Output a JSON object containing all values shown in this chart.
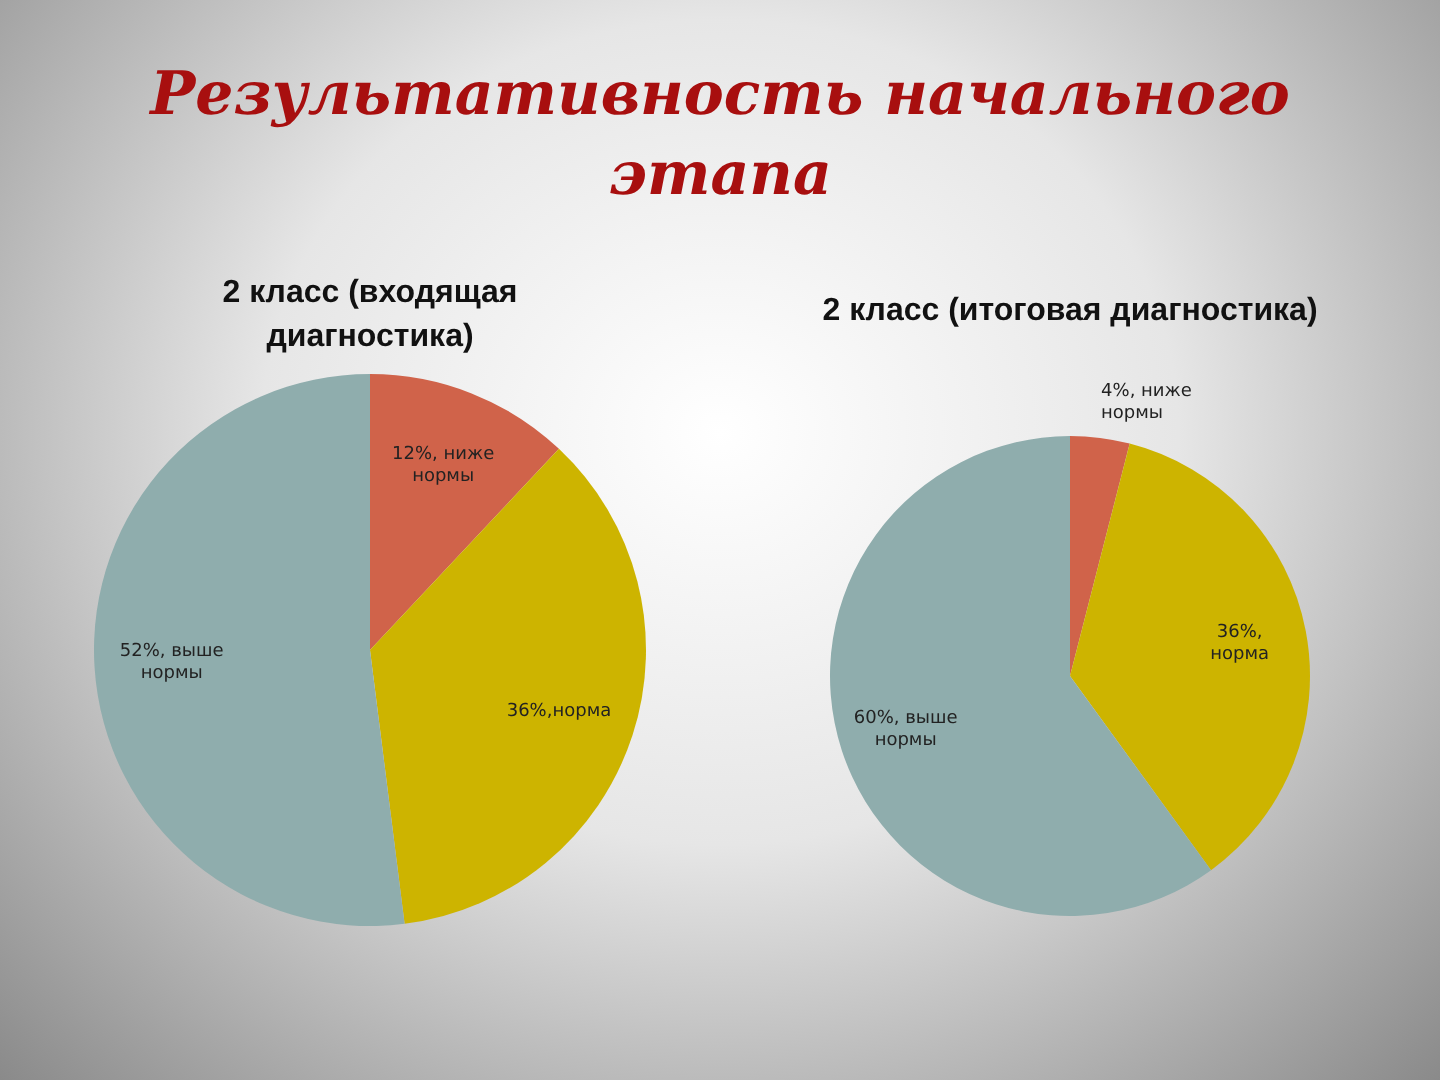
{
  "chart_data": [
    {
      "type": "other",
      "title": "Результативность начального этапа"
    },
    {
      "type": "pie",
      "title": "2 класс (входящая диагностика)",
      "categories": [
        "ниже нормы",
        "норма",
        "выше нормы"
      ],
      "values": [
        12,
        36,
        52
      ],
      "colors": [
        "#d0634a",
        "#cdb400",
        "#8fadad"
      ],
      "value_labels": [
        "12%, ",
        "36%,",
        "52%, "
      ],
      "legend": false
    },
    {
      "type": "pie",
      "title": "2 класс (итоговая диагностика)",
      "categories": [
        "ниже нормы",
        "норма",
        "выше нормы"
      ],
      "values": [
        4,
        36,
        60
      ],
      "colors": [
        "#d0634a",
        "#cdb400",
        "#8fadad"
      ],
      "value_labels": [
        "4%, ",
        "36%, ",
        "60%, "
      ],
      "legend": false
    }
  ]
}
